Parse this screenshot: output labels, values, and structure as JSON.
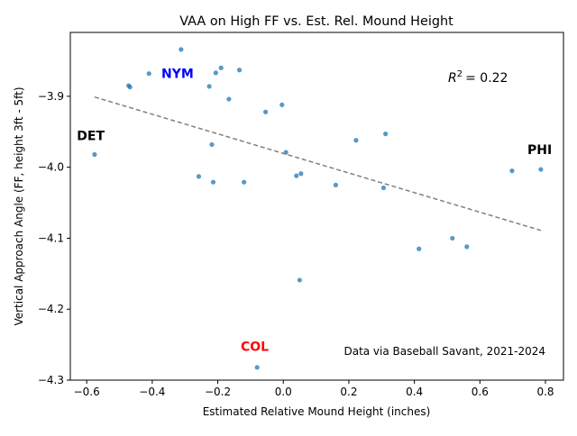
{
  "chart_data": {
    "type": "scatter",
    "title": "VAA on High FF vs. Est. Rel. Mound Height",
    "xlabel": "Estimated Relative Mound Height (inches)",
    "ylabel": "Vertical Approach Angle (FF, height 3ft - 5ft)",
    "xlim": [
      -0.65,
      0.855
    ],
    "ylim": [
      -4.3,
      -3.81
    ],
    "x_ticks": [
      -0.6,
      -0.4,
      -0.2,
      0.0,
      0.2,
      0.4,
      0.6,
      0.8
    ],
    "x_tick_labels": [
      "−0.6",
      "−0.4",
      "−0.2",
      "0.0",
      "0.2",
      "0.4",
      "0.6",
      "0.8"
    ],
    "y_ticks": [
      -3.9,
      -4.0,
      -4.1,
      -4.2,
      -4.3
    ],
    "y_tick_labels": [
      "−3.9",
      "−4.0",
      "−4.1",
      "−4.2",
      "−4.3"
    ],
    "grid": false,
    "point_color": "#1f77b4",
    "trendline_color": "#808080",
    "r2_label": "= 0.22",
    "source_note": "Data via Baseball Savant, 2021-2024",
    "points": [
      {
        "x": -0.576,
        "y": -3.982
      },
      {
        "x": -0.472,
        "y": -3.885
      },
      {
        "x": -0.468,
        "y": -3.887
      },
      {
        "x": -0.41,
        "y": -3.868
      },
      {
        "x": -0.312,
        "y": -3.834
      },
      {
        "x": -0.226,
        "y": -3.886
      },
      {
        "x": -0.206,
        "y": -3.867
      },
      {
        "x": -0.19,
        "y": -3.86
      },
      {
        "x": -0.166,
        "y": -3.904
      },
      {
        "x": -0.134,
        "y": -3.863
      },
      {
        "x": -0.218,
        "y": -3.968
      },
      {
        "x": -0.258,
        "y": -4.013
      },
      {
        "x": -0.214,
        "y": -4.021
      },
      {
        "x": -0.12,
        "y": -4.021
      },
      {
        "x": -0.054,
        "y": -3.922
      },
      {
        "x": -0.004,
        "y": -3.912
      },
      {
        "x": 0.008,
        "y": -3.979
      },
      {
        "x": 0.04,
        "y": -4.012
      },
      {
        "x": 0.054,
        "y": -4.009
      },
      {
        "x": 0.16,
        "y": -4.025
      },
      {
        "x": 0.222,
        "y": -3.962
      },
      {
        "x": 0.312,
        "y": -3.953
      },
      {
        "x": 0.306,
        "y": -4.029
      },
      {
        "x": 0.414,
        "y": -4.115
      },
      {
        "x": 0.516,
        "y": -4.1
      },
      {
        "x": 0.56,
        "y": -4.112
      },
      {
        "x": 0.698,
        "y": -4.005
      },
      {
        "x": 0.786,
        "y": -4.003
      },
      {
        "x": 0.05,
        "y": -4.159
      },
      {
        "x": -0.08,
        "y": -4.282
      }
    ],
    "trendline": {
      "x": [
        -0.576,
        0.786
      ],
      "y": [
        -3.901,
        -4.089
      ]
    },
    "annotations": [
      {
        "text": "DET",
        "x": -0.63,
        "y": -3.962,
        "color": "#000000"
      },
      {
        "text": "NYM",
        "x": -0.372,
        "y": -3.874,
        "color": "#0000ff"
      },
      {
        "text": "PHI",
        "x": 0.745,
        "y": -3.9815,
        "color": "#000000"
      },
      {
        "text": "COL",
        "x": -0.13,
        "y": -4.259,
        "color": "#ff0000"
      }
    ]
  }
}
